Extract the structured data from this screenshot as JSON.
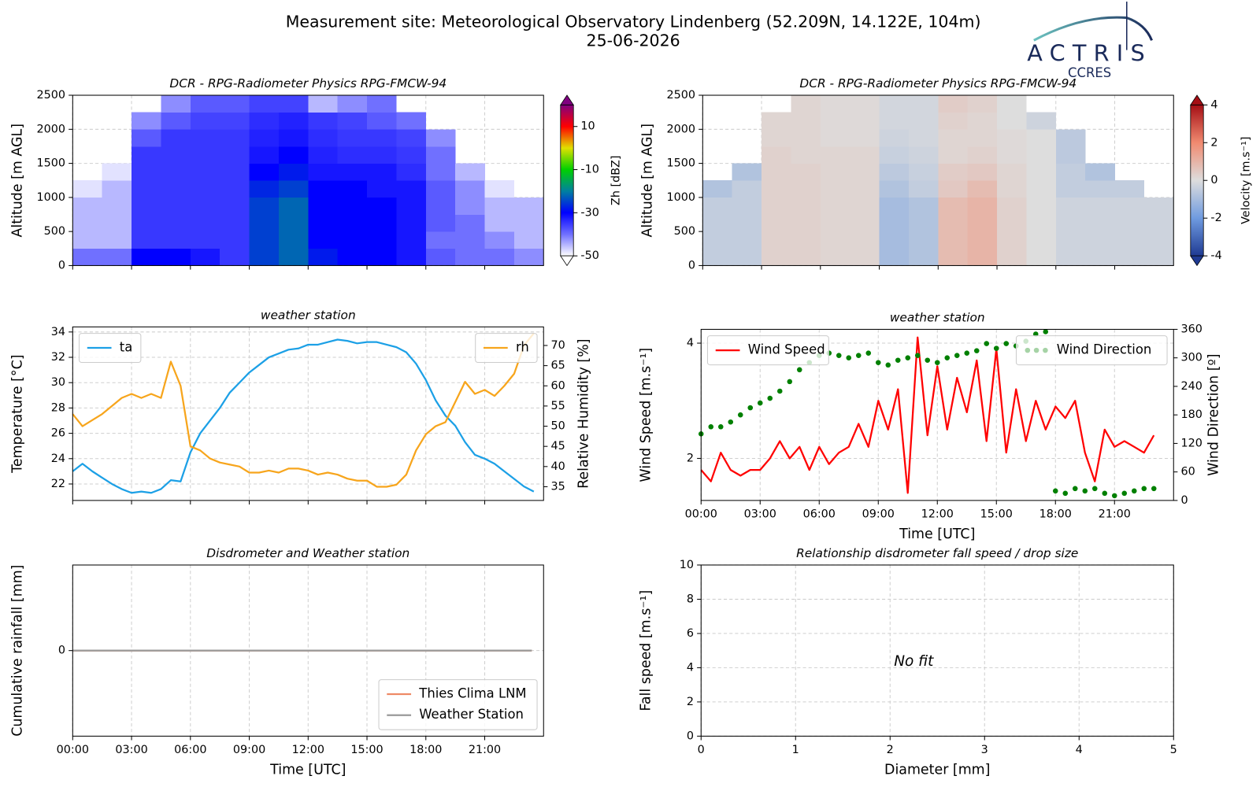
{
  "header": {
    "title": "Measurement site: Meteorological Observatory Lindenberg (52.209N, 14.122E, 104m)",
    "date": "25-06-2026",
    "logo": "ACTRIS",
    "logo_sub": "CCRES"
  },
  "chart_data": [
    {
      "type": "heatmap",
      "title": "DCR - RPG-Radiometer Physics RPG-FMCW-94",
      "ylabel": "Altitude [m AGL]",
      "x_bins": [
        0,
        1.5,
        3,
        4.5,
        6,
        7.5,
        9,
        10.5,
        12,
        13.5,
        15,
        16.5,
        18,
        19.5,
        21,
        22.5,
        24
      ],
      "y_bins": [
        0,
        250,
        500,
        750,
        1000,
        1250,
        1500,
        1750,
        2000,
        2250,
        2500
      ],
      "z": [
        [
          -40,
          -40,
          -30,
          -30,
          -32,
          -35,
          -25,
          -22,
          -28,
          -30,
          -30,
          -32,
          -38,
          -40,
          -40,
          -42
        ],
        [
          -45,
          -45,
          -35,
          -35,
          -35,
          -35,
          -25,
          -22,
          -30,
          -30,
          -30,
          -32,
          -40,
          -40,
          -42,
          -45
        ],
        [
          -45,
          -45,
          -35,
          -35,
          -35,
          -35,
          -25,
          -22,
          -30,
          -30,
          -30,
          -32,
          -38,
          -40,
          -45,
          -45
        ],
        [
          -45,
          -45,
          -35,
          -35,
          -35,
          -35,
          -25,
          -22,
          -30,
          -30,
          -30,
          -32,
          -38,
          -42,
          -45,
          -45
        ],
        [
          -48,
          -45,
          -35,
          -35,
          -35,
          -35,
          -27,
          -25,
          -30,
          -30,
          -32,
          -32,
          -38,
          -42,
          -48,
          null
        ],
        [
          null,
          -48,
          -35,
          -35,
          -35,
          -35,
          -30,
          -28,
          -32,
          -32,
          -32,
          -34,
          -40,
          -45,
          null,
          null
        ],
        [
          null,
          null,
          -35,
          -35,
          -35,
          -35,
          -32,
          -30,
          -33,
          -34,
          -34,
          -35,
          -40,
          null,
          null,
          null
        ],
        [
          null,
          null,
          -38,
          -35,
          -35,
          -35,
          -33,
          -32,
          -34,
          -35,
          -35,
          -36,
          -42,
          null,
          null,
          null
        ],
        [
          null,
          null,
          -42,
          -38,
          -36,
          -36,
          -34,
          -33,
          -35,
          -36,
          -38,
          -40,
          null,
          null,
          null,
          null
        ],
        [
          null,
          null,
          null,
          -42,
          -38,
          -38,
          -36,
          -36,
          -45,
          -42,
          -40,
          null,
          null,
          null,
          null,
          null
        ]
      ],
      "xlim": [
        0,
        24
      ],
      "xticks": [
        0,
        3,
        6,
        9,
        12,
        15,
        18,
        21
      ],
      "xticklabels": false,
      "ylim": [
        0,
        2500
      ],
      "yticks": [
        0,
        500,
        1000,
        1500,
        2000,
        2500
      ],
      "grid": true,
      "colorbar": {
        "label": "Zh [dBZ]",
        "lim": [
          -50,
          20
        ],
        "ticks": [
          -50,
          -30,
          -10,
          10
        ],
        "extend": "both",
        "colors": [
          "#ffffff",
          "#7070ff",
          "#0000ff",
          "#0080a0",
          "#00d000",
          "#e0e000",
          "#ff0000",
          "#800080"
        ]
      }
    },
    {
      "type": "heatmap",
      "title": "DCR - RPG-Radiometer Physics RPG-FMCW-94",
      "ylabel": "Altitude [m AGL]",
      "x_bins": [
        0,
        1.5,
        3,
        4.5,
        6,
        7.5,
        9,
        10.5,
        12,
        13.5,
        15,
        16.5,
        18,
        19.5,
        21,
        22.5,
        24
      ],
      "y_bins": [
        0,
        250,
        500,
        750,
        1000,
        1250,
        1500,
        1750,
        2000,
        2250,
        2500
      ],
      "z": [
        [
          -0.5,
          -0.5,
          0.3,
          0.3,
          0.2,
          0.2,
          -1,
          -0.8,
          0.8,
          1,
          0.3,
          0,
          -0.3,
          -0.3,
          -0.3,
          -0.3
        ],
        [
          -0.5,
          -0.5,
          0.3,
          0.3,
          0.2,
          0.2,
          -1,
          -0.8,
          0.8,
          1,
          0.3,
          0,
          -0.3,
          -0.3,
          -0.3,
          -0.3
        ],
        [
          -0.5,
          -0.5,
          0.3,
          0.3,
          0.2,
          0.2,
          -1,
          -0.8,
          0.8,
          1,
          0.3,
          0,
          -0.3,
          -0.3,
          -0.3,
          -0.3
        ],
        [
          -0.5,
          -0.5,
          0.3,
          0.3,
          0.2,
          0.2,
          -1,
          -0.8,
          0.8,
          1,
          0.3,
          0,
          -0.3,
          -0.3,
          -0.3,
          -0.3
        ],
        [
          -0.8,
          -0.5,
          0.3,
          0.3,
          0.2,
          0.2,
          -0.8,
          -0.5,
          0.5,
          0.8,
          0.2,
          0,
          -0.5,
          -0.5,
          -0.5,
          null
        ],
        [
          null,
          -0.8,
          0.3,
          0.3,
          0.2,
          0.2,
          -0.6,
          -0.4,
          0.4,
          0.5,
          0.2,
          0,
          -0.5,
          -0.8,
          null,
          null
        ],
        [
          null,
          null,
          0.3,
          0.2,
          0.2,
          0.2,
          -0.4,
          -0.3,
          0.2,
          0.3,
          0.1,
          0,
          -0.6,
          null,
          null,
          null
        ],
        [
          null,
          null,
          0.2,
          0.2,
          0.1,
          0.1,
          -0.3,
          -0.2,
          0.2,
          0.2,
          0.1,
          0,
          -0.6,
          null,
          null,
          null
        ],
        [
          null,
          null,
          0.2,
          0.2,
          0.1,
          0.1,
          -0.2,
          -0.2,
          0.3,
          0.2,
          0,
          -0.3,
          null,
          null,
          null,
          null
        ],
        [
          null,
          null,
          null,
          0.2,
          0.1,
          0.1,
          -0.2,
          -0.2,
          0.4,
          0.3,
          0,
          null,
          null,
          null,
          null,
          null
        ]
      ],
      "xlim": [
        0,
        24
      ],
      "xticks": [
        0,
        3,
        6,
        9,
        12,
        15,
        18,
        21
      ],
      "xticklabels": false,
      "ylim": [
        0,
        2500
      ],
      "yticks": [
        0,
        500,
        1000,
        1500,
        2000,
        2500
      ],
      "grid": true,
      "colorbar": {
        "label": "Velocity [m.s⁻¹]",
        "lim": [
          -4,
          4
        ],
        "ticks": [
          -4,
          -2,
          0,
          2,
          4
        ],
        "extend": "both",
        "colors": [
          "#1f3a93",
          "#6f9be0",
          "#dddddd",
          "#f08a70",
          "#a50f15"
        ]
      }
    },
    {
      "type": "line",
      "title": "weather station",
      "ylabel": "Temperature [°C]",
      "y2label": "Relative Humidity [%]",
      "x": [
        0,
        0.5,
        1,
        1.5,
        2,
        2.5,
        3,
        3.5,
        4,
        4.5,
        5,
        5.5,
        6,
        6.5,
        7,
        7.5,
        8,
        8.5,
        9,
        9.5,
        10,
        10.5,
        11,
        11.5,
        12,
        12.5,
        13,
        13.5,
        14,
        14.5,
        15,
        15.5,
        16,
        16.5,
        17,
        17.5,
        18,
        18.5,
        19,
        19.5,
        20,
        20.5,
        21,
        21.5,
        22,
        22.5,
        23,
        23.5
      ],
      "series": [
        {
          "name": "ta",
          "color": "#1ca0e6",
          "legend": "upper left",
          "values": [
            23,
            23.6,
            23,
            22.5,
            22,
            21.6,
            21.3,
            21.4,
            21.3,
            21.6,
            22.3,
            22.2,
            24.5,
            26,
            27,
            28,
            29.2,
            30,
            30.8,
            31.4,
            32,
            32.3,
            32.6,
            32.7,
            33,
            33,
            33.2,
            33.4,
            33.3,
            33.1,
            33.2,
            33.2,
            33,
            32.8,
            32.4,
            31.5,
            30.2,
            28.6,
            27.4,
            26.6,
            25.3,
            24.3,
            24,
            23.6,
            23,
            22.4,
            21.8,
            21.4
          ]
        },
        {
          "name": "rh",
          "color": "#f7a51c",
          "axis": "y2",
          "legend": "upper right",
          "values": [
            53,
            50,
            51.5,
            53,
            55,
            57,
            58,
            57,
            58,
            57,
            66,
            60,
            45,
            44,
            42,
            41,
            40.5,
            40,
            38.5,
            38.5,
            39,
            38.5,
            39.5,
            39.5,
            39,
            38,
            38.5,
            38,
            37,
            36.5,
            36.5,
            35,
            35,
            35.5,
            38,
            44,
            48,
            50,
            51,
            56,
            61,
            58,
            59,
            57.5,
            60,
            63,
            70,
            73
          ]
        }
      ],
      "xlim": [
        0,
        24
      ],
      "xticks": [
        0,
        3,
        6,
        9,
        12,
        15,
        18,
        21
      ],
      "xticklabels": false,
      "ylim": [
        20.7,
        34.4
      ],
      "yticks": [
        22,
        24,
        26,
        28,
        30,
        32,
        34
      ],
      "y2lim": [
        31.6,
        74.6
      ],
      "y2ticks": [
        35,
        40,
        45,
        50,
        55,
        60,
        65,
        70
      ],
      "grid": true
    },
    {
      "type": "line",
      "title": "weather station",
      "ylabel": "Wind Speed [m.s⁻¹]",
      "y2label": "Wind Direction [º]",
      "xlabel": "Time [UTC]",
      "x": [
        0,
        0.5,
        1,
        1.5,
        2,
        2.5,
        3,
        3.5,
        4,
        4.5,
        5,
        5.5,
        6,
        6.5,
        7,
        7.5,
        8,
        8.5,
        9,
        9.5,
        10,
        10.5,
        11,
        11.5,
        12,
        12.5,
        13,
        13.5,
        14,
        14.5,
        15,
        15.5,
        16,
        16.5,
        17,
        17.5,
        18,
        18.5,
        19,
        19.5,
        20,
        20.5,
        21,
        21.5,
        22,
        22.5,
        23
      ],
      "series": [
        {
          "name": "Wind Speed",
          "color": "#ff0000",
          "legend": "upper left",
          "values": [
            1.8,
            1.6,
            2.1,
            1.8,
            1.7,
            1.8,
            1.8,
            2.0,
            2.3,
            2.0,
            2.2,
            1.8,
            2.2,
            1.9,
            2.1,
            2.2,
            2.6,
            2.2,
            3.0,
            2.5,
            3.2,
            1.4,
            4.1,
            2.4,
            3.6,
            2.5,
            3.4,
            2.8,
            3.7,
            2.3,
            3.9,
            2.1,
            3.2,
            2.3,
            3.0,
            2.5,
            2.9,
            2.7,
            3.0,
            2.1,
            1.6,
            2.5,
            2.2,
            2.3,
            2.2,
            2.1,
            2.4
          ]
        },
        {
          "name": "Wind Direction",
          "color": "#008000",
          "axis": "y2",
          "style": "markers",
          "legend": "upper right",
          "values": [
            140,
            155,
            155,
            165,
            180,
            195,
            205,
            215,
            230,
            250,
            275,
            290,
            305,
            310,
            305,
            300,
            305,
            310,
            290,
            285,
            295,
            300,
            305,
            295,
            290,
            300,
            305,
            310,
            315,
            330,
            320,
            330,
            325,
            335,
            350,
            355,
            20,
            15,
            25,
            20,
            25,
            15,
            10,
            15,
            20,
            25,
            25
          ]
        }
      ],
      "xlim": [
        0,
        24
      ],
      "xticks": [
        {
          "value": 0,
          "label": "00:00"
        },
        {
          "value": 3,
          "label": "03:00"
        },
        {
          "value": 6,
          "label": "06:00"
        },
        {
          "value": 9,
          "label": "09:00"
        },
        {
          "value": 12,
          "label": "12:00"
        },
        {
          "value": 15,
          "label": "15:00"
        },
        {
          "value": 18,
          "label": "18:00"
        },
        {
          "value": 21,
          "label": "21:00"
        }
      ],
      "ylim": [
        1.27,
        4.24
      ],
      "yticks": [
        2,
        4
      ],
      "y2lim": [
        0,
        360
      ],
      "y2ticks": [
        0,
        60,
        120,
        180,
        240,
        300,
        360
      ],
      "grid": true
    },
    {
      "type": "line",
      "title": "Disdrometer and Weather station",
      "ylabel": "Cumulative rainfall [mm]",
      "xlabel": "Time [UTC]",
      "x": [
        0,
        23.4
      ],
      "series": [
        {
          "name": "Thies Clima LNM",
          "color": "#ee8a66",
          "legend": "lower right",
          "values": [
            0,
            0
          ]
        },
        {
          "name": "Weather Station",
          "color": "#999999",
          "legend": "lower right",
          "values": [
            0,
            0
          ]
        }
      ],
      "xlim": [
        0,
        24
      ],
      "xticks": [
        {
          "value": 0,
          "label": "00:00"
        },
        {
          "value": 3,
          "label": "03:00"
        },
        {
          "value": 6,
          "label": "06:00"
        },
        {
          "value": 9,
          "label": "09:00"
        },
        {
          "value": 12,
          "label": "12:00"
        },
        {
          "value": 15,
          "label": "15:00"
        },
        {
          "value": 18,
          "label": "18:00"
        },
        {
          "value": 21,
          "label": "21:00"
        }
      ],
      "ylim": [
        -1,
        1
      ],
      "yticks": [
        0
      ],
      "grid": true
    },
    {
      "type": "scatter",
      "title": "Relationship disdrometer fall speed / drop size",
      "ylabel": "Fall speed [m.s⁻¹]",
      "xlabel": "Diameter [mm]",
      "annotation": "No fit",
      "xlim": [
        0,
        5
      ],
      "xticks": [
        0,
        1,
        2,
        3,
        4,
        5
      ],
      "ylim": [
        0,
        10
      ],
      "yticks": [
        0,
        2,
        4,
        6,
        8,
        10
      ],
      "grid": true
    }
  ]
}
